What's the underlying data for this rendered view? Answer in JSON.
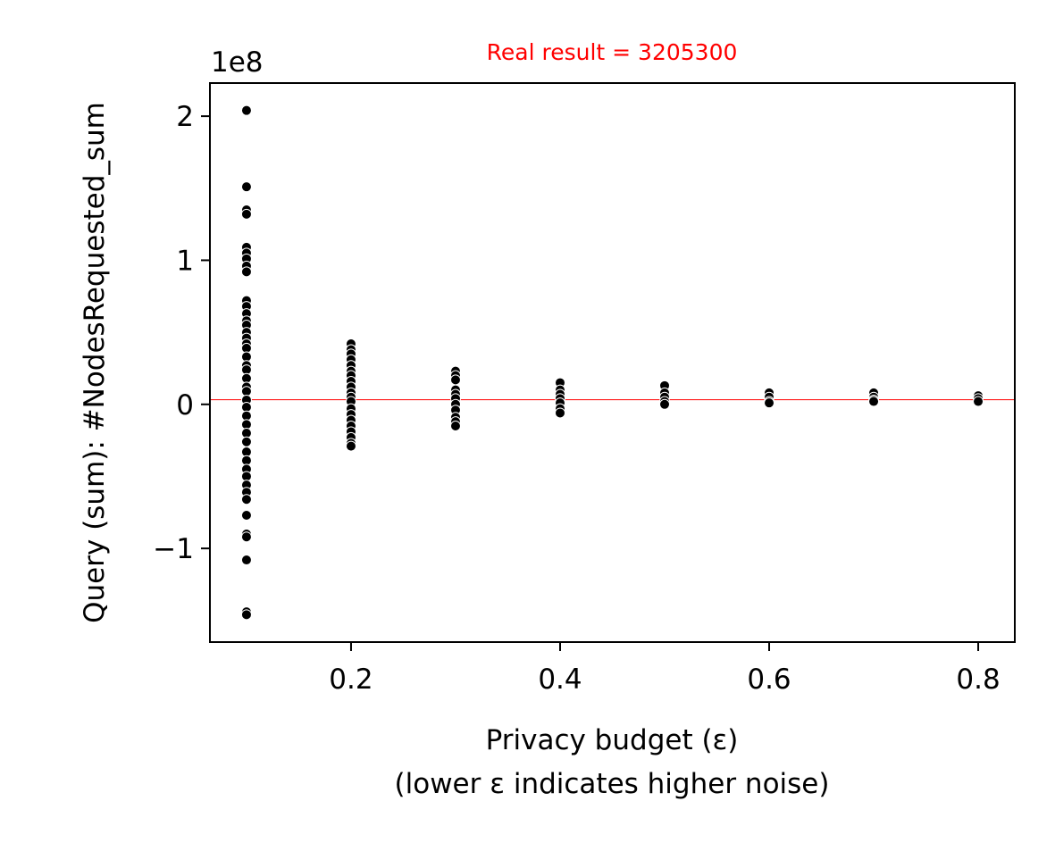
{
  "chart_data": {
    "type": "scatter",
    "title": "Real result = 3205300",
    "title_color": "#ff0000",
    "xlabel": "Privacy budget (ε)",
    "xlabel_line2": "(lower ε indicates higher noise)",
    "ylabel": "Query (sum): #NodesRequested_sum",
    "y_offset_label": "1e8",
    "xlim": [
      0.065,
      0.835
    ],
    "ylim": [
      -1.65,
      2.23
    ],
    "y_unit_scale": 100000000,
    "x_ticks": [
      0.2,
      0.4,
      0.6,
      0.8
    ],
    "x_tick_labels": [
      "0.2",
      "0.4",
      "0.6",
      "0.8"
    ],
    "y_ticks": [
      -1,
      0,
      1,
      2
    ],
    "y_tick_labels": [
      "−1",
      "0",
      "1",
      "2"
    ],
    "reference_line": {
      "y": 3205300,
      "color": "#ff0000"
    },
    "marker_color": "#000000",
    "grid": false,
    "series": [
      {
        "points": [
          {
            "x": 0.1,
            "y": 2.04
          },
          {
            "x": 0.1,
            "y": 1.51
          },
          {
            "x": 0.1,
            "y": 1.35
          },
          {
            "x": 0.1,
            "y": 1.32
          },
          {
            "x": 0.1,
            "y": 1.09
          },
          {
            "x": 0.1,
            "y": 1.05
          },
          {
            "x": 0.1,
            "y": 1.01
          },
          {
            "x": 0.1,
            "y": 0.96
          },
          {
            "x": 0.1,
            "y": 0.92
          },
          {
            "x": 0.1,
            "y": 0.72
          },
          {
            "x": 0.1,
            "y": 0.68
          },
          {
            "x": 0.1,
            "y": 0.63
          },
          {
            "x": 0.1,
            "y": 0.58
          },
          {
            "x": 0.1,
            "y": 0.55
          },
          {
            "x": 0.1,
            "y": 0.5
          },
          {
            "x": 0.1,
            "y": 0.46
          },
          {
            "x": 0.1,
            "y": 0.42
          },
          {
            "x": 0.1,
            "y": 0.39
          },
          {
            "x": 0.1,
            "y": 0.33
          },
          {
            "x": 0.1,
            "y": 0.27
          },
          {
            "x": 0.1,
            "y": 0.24
          },
          {
            "x": 0.1,
            "y": 0.18
          },
          {
            "x": 0.1,
            "y": 0.12
          },
          {
            "x": 0.1,
            "y": 0.09
          },
          {
            "x": 0.1,
            "y": 0.03
          },
          {
            "x": 0.1,
            "y": -0.02
          },
          {
            "x": 0.1,
            "y": -0.08
          },
          {
            "x": 0.1,
            "y": -0.14
          },
          {
            "x": 0.1,
            "y": -0.2
          },
          {
            "x": 0.1,
            "y": -0.26
          },
          {
            "x": 0.1,
            "y": -0.33
          },
          {
            "x": 0.1,
            "y": -0.39
          },
          {
            "x": 0.1,
            "y": -0.45
          },
          {
            "x": 0.1,
            "y": -0.5
          },
          {
            "x": 0.1,
            "y": -0.56
          },
          {
            "x": 0.1,
            "y": -0.61
          },
          {
            "x": 0.1,
            "y": -0.66
          },
          {
            "x": 0.1,
            "y": -0.77
          },
          {
            "x": 0.1,
            "y": -0.9
          },
          {
            "x": 0.1,
            "y": -0.92
          },
          {
            "x": 0.1,
            "y": -1.08
          },
          {
            "x": 0.1,
            "y": -1.44
          },
          {
            "x": 0.1,
            "y": -1.46
          },
          {
            "x": 0.2,
            "y": 0.42
          },
          {
            "x": 0.2,
            "y": 0.38
          },
          {
            "x": 0.2,
            "y": 0.35
          },
          {
            "x": 0.2,
            "y": 0.31
          },
          {
            "x": 0.2,
            "y": 0.27
          },
          {
            "x": 0.2,
            "y": 0.23
          },
          {
            "x": 0.2,
            "y": 0.2
          },
          {
            "x": 0.2,
            "y": 0.16
          },
          {
            "x": 0.2,
            "y": 0.12
          },
          {
            "x": 0.2,
            "y": 0.08
          },
          {
            "x": 0.2,
            "y": 0.05
          },
          {
            "x": 0.2,
            "y": 0.02
          },
          {
            "x": 0.2,
            "y": -0.03
          },
          {
            "x": 0.2,
            "y": -0.07
          },
          {
            "x": 0.2,
            "y": -0.11
          },
          {
            "x": 0.2,
            "y": -0.15
          },
          {
            "x": 0.2,
            "y": -0.19
          },
          {
            "x": 0.2,
            "y": -0.23
          },
          {
            "x": 0.2,
            "y": -0.27
          },
          {
            "x": 0.2,
            "y": -0.29
          },
          {
            "x": 0.3,
            "y": 0.23
          },
          {
            "x": 0.3,
            "y": 0.2
          },
          {
            "x": 0.3,
            "y": 0.17
          },
          {
            "x": 0.3,
            "y": 0.1
          },
          {
            "x": 0.3,
            "y": 0.07
          },
          {
            "x": 0.3,
            "y": 0.04
          },
          {
            "x": 0.3,
            "y": 0.0
          },
          {
            "x": 0.3,
            "y": -0.04
          },
          {
            "x": 0.3,
            "y": -0.09
          },
          {
            "x": 0.3,
            "y": -0.12
          },
          {
            "x": 0.3,
            "y": -0.15
          },
          {
            "x": 0.4,
            "y": 0.15
          },
          {
            "x": 0.4,
            "y": 0.1
          },
          {
            "x": 0.4,
            "y": 0.07
          },
          {
            "x": 0.4,
            "y": 0.04
          },
          {
            "x": 0.4,
            "y": 0.01
          },
          {
            "x": 0.4,
            "y": -0.03
          },
          {
            "x": 0.4,
            "y": -0.06
          },
          {
            "x": 0.5,
            "y": 0.13
          },
          {
            "x": 0.5,
            "y": 0.08
          },
          {
            "x": 0.5,
            "y": 0.05
          },
          {
            "x": 0.5,
            "y": 0.02
          },
          {
            "x": 0.5,
            "y": 0.0
          },
          {
            "x": 0.6,
            "y": 0.08
          },
          {
            "x": 0.6,
            "y": 0.05
          },
          {
            "x": 0.6,
            "y": 0.02
          },
          {
            "x": 0.6,
            "y": 0.01
          },
          {
            "x": 0.7,
            "y": 0.08
          },
          {
            "x": 0.7,
            "y": 0.05
          },
          {
            "x": 0.7,
            "y": 0.03
          },
          {
            "x": 0.7,
            "y": 0.02
          },
          {
            "x": 0.8,
            "y": 0.06
          },
          {
            "x": 0.8,
            "y": 0.04
          },
          {
            "x": 0.8,
            "y": 0.02
          }
        ]
      }
    ]
  }
}
